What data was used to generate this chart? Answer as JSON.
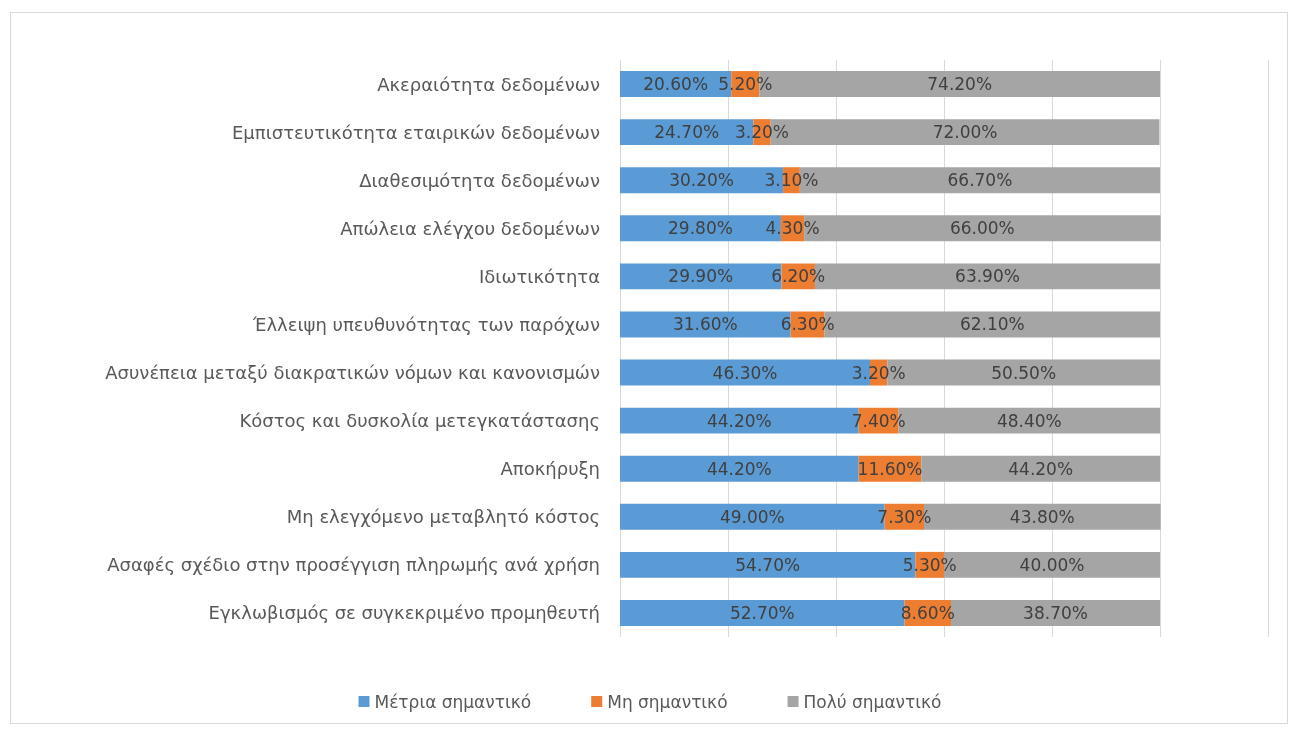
{
  "chart_data": {
    "type": "bar",
    "orientation": "horizontal",
    "stacked": true,
    "categories": [
      "Ακεραιότητα δεδομένων",
      "Εμπιστευτικότητα εταιρικών δεδομένων",
      "Διαθεσιμότητα δεδομένων",
      "Απώλεια ελέγχου δεδομένων",
      "Ιδιωτικότητα",
      "Έλλειψη υπευθυνότητας των παρόχων",
      "Ασυνέπεια μεταξύ διακρατικών νόμων και κανονισμών",
      "Κόστος και δυσκολία μετεγκατάστασης",
      "Αποκήρυξη",
      "Μη ελεγχόμενο μεταβλητό κόστος",
      "Ασαφές σχέδιο στην προσέγγιση πληρωμής ανά χρήση",
      "Εγκλωβισμός σε συγκεκριμένο προμηθευτή"
    ],
    "series": [
      {
        "name": "Μέτρια σημαντικό",
        "color": "#5b9bd5",
        "values": [
          20.6,
          24.7,
          30.2,
          29.8,
          29.9,
          31.6,
          46.3,
          44.2,
          44.2,
          49.0,
          54.7,
          52.7
        ],
        "value_labels": [
          "20.60%",
          "24.70%",
          "30.20%",
          "29.80%",
          "29.90%",
          "31.60%",
          "46.30%",
          "44.20%",
          "44.20%",
          "49.00%",
          "54.70%",
          "52.70%"
        ]
      },
      {
        "name": "Μη σημαντικό",
        "color": "#ed7d31",
        "values": [
          5.2,
          3.2,
          3.1,
          4.3,
          6.2,
          6.3,
          3.2,
          7.4,
          11.6,
          7.3,
          5.3,
          8.6
        ],
        "value_labels": [
          "5.20%",
          "3.20%",
          "3.10%",
          "4.30%",
          "6.20%",
          "6.30%",
          "3.20%",
          "7.40%",
          "11.60%",
          "7.30%",
          "5.30%",
          "8.60%"
        ]
      },
      {
        "name": "Πολύ σημαντικό",
        "color": "#a5a5a5",
        "values": [
          74.2,
          72.0,
          66.7,
          66.0,
          63.9,
          62.1,
          50.5,
          48.4,
          44.2,
          43.8,
          40.0,
          38.7
        ],
        "value_labels": [
          "74.20%",
          "72.00%",
          "66.70%",
          "66.00%",
          "63.90%",
          "62.10%",
          "50.50%",
          "48.40%",
          "44.20%",
          "43.80%",
          "40.00%",
          "38.70%"
        ]
      }
    ],
    "xticks": [
      {
        "value": 0,
        "label": null
      },
      {
        "value": 20,
        "label": null
      },
      {
        "value": 40,
        "label": null
      },
      {
        "value": 60,
        "label": null
      },
      {
        "value": 80,
        "label": null
      },
      {
        "value": 100,
        "label": null
      },
      {
        "value": 120,
        "label": null
      }
    ],
    "grid": "x",
    "legend": "bottom",
    "tick_labels": "y"
  }
}
